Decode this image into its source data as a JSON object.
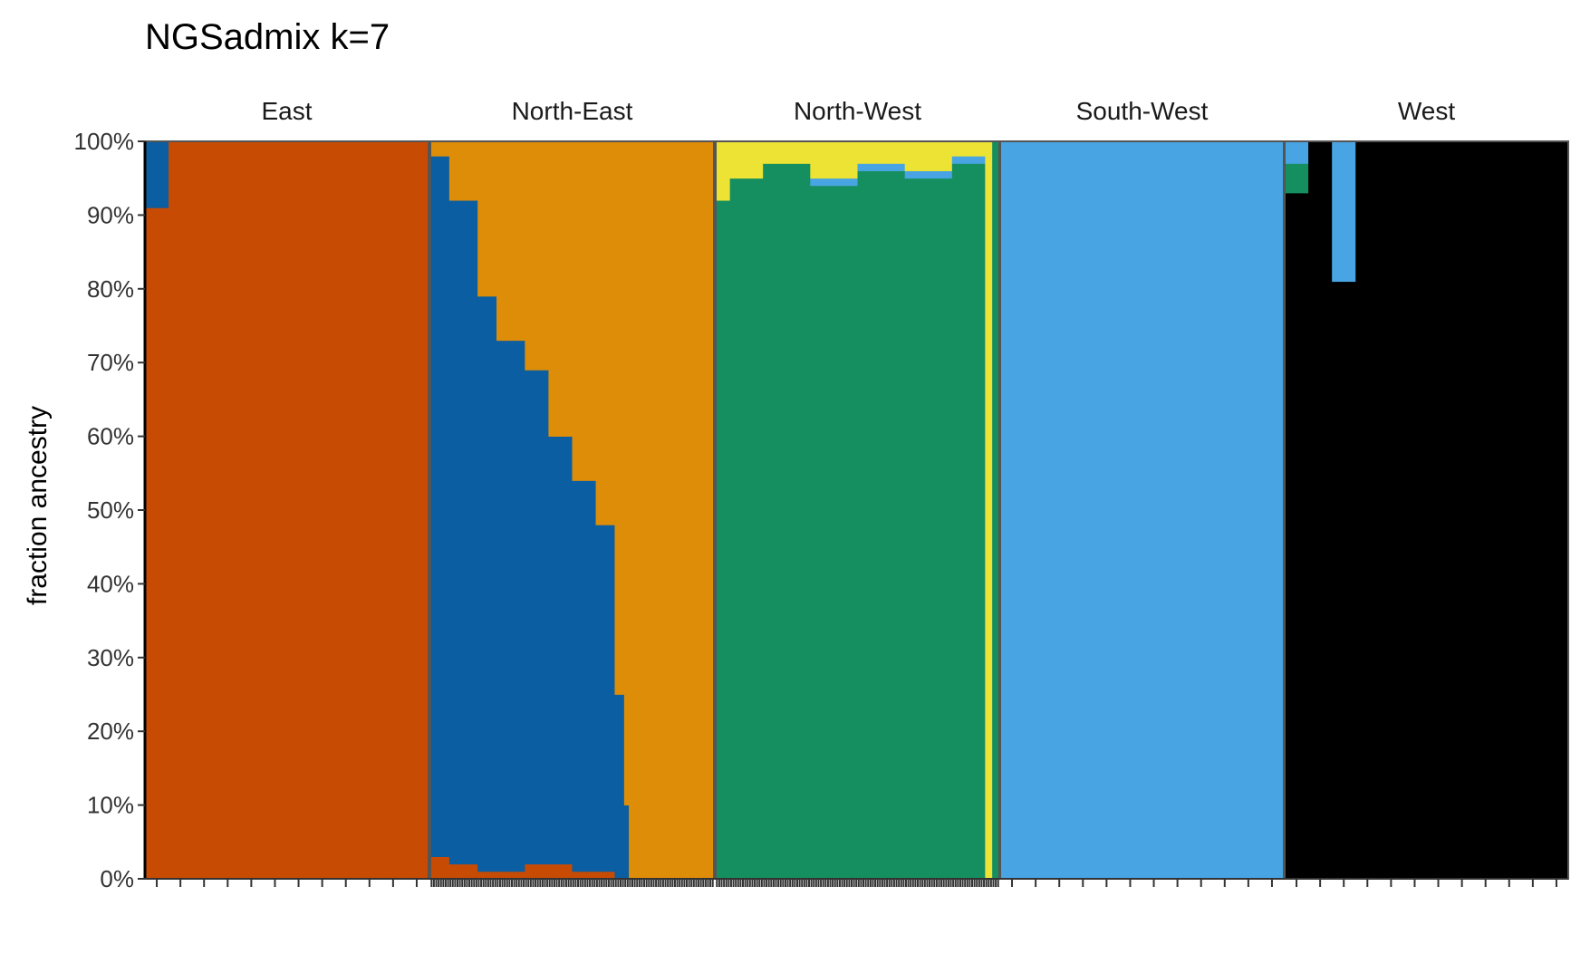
{
  "chart_data": {
    "type": "bar",
    "subtype": "stacked-100-percent-faceted",
    "title": "NGSadmix k=7",
    "ylabel": "fraction ancestry",
    "xlabel": "",
    "ylim": [
      0,
      100
    ],
    "y_ticks": [
      "0%",
      "10%",
      "20%",
      "30%",
      "40%",
      "50%",
      "60%",
      "70%",
      "80%",
      "90%",
      "100%"
    ],
    "grid": false,
    "legend": "none",
    "component_colors": {
      "orange_red": "#c84b04",
      "dark_blue": "#0a5ea1",
      "orange": "#de8d09",
      "green": "#168f60",
      "yellow": "#ece334",
      "light_blue": "#48a4e2",
      "black": "#000000"
    },
    "facets": [
      {
        "name": "East",
        "samples": 12,
        "stack_order": [
          "orange_red",
          "dark_blue"
        ],
        "segments": [
          {
            "samples": [
              0,
              1
            ],
            "values": {
              "orange_red": 91,
              "dark_blue": 9
            }
          },
          {
            "samples": [
              1,
              12
            ],
            "values": {
              "orange_red": 100,
              "dark_blue": 0
            }
          }
        ]
      },
      {
        "name": "North-East",
        "samples": 120,
        "stack_order": [
          "orange_red",
          "dark_blue",
          "orange"
        ],
        "segments": [
          {
            "samples": [
              0,
              8
            ],
            "values": {
              "orange_red": 3,
              "dark_blue": 95,
              "orange": 2
            }
          },
          {
            "samples": [
              8,
              20
            ],
            "values": {
              "orange_red": 2,
              "dark_blue": 90,
              "orange": 8
            }
          },
          {
            "samples": [
              20,
              28
            ],
            "values": {
              "orange_red": 1,
              "dark_blue": 78,
              "orange": 21
            }
          },
          {
            "samples": [
              28,
              40
            ],
            "values": {
              "orange_red": 1,
              "dark_blue": 72,
              "orange": 27
            }
          },
          {
            "samples": [
              40,
              50
            ],
            "values": {
              "orange_red": 2,
              "dark_blue": 67,
              "orange": 31
            }
          },
          {
            "samples": [
              50,
              60
            ],
            "values": {
              "orange_red": 2,
              "dark_blue": 58,
              "orange": 40
            }
          },
          {
            "samples": [
              60,
              70
            ],
            "values": {
              "orange_red": 1,
              "dark_blue": 53,
              "orange": 46
            }
          },
          {
            "samples": [
              70,
              78
            ],
            "values": {
              "orange_red": 1,
              "dark_blue": 47,
              "orange": 52
            }
          },
          {
            "samples": [
              78,
              82
            ],
            "values": {
              "orange_red": 0,
              "dark_blue": 25,
              "orange": 75
            }
          },
          {
            "samples": [
              82,
              84
            ],
            "values": {
              "orange_red": 0,
              "dark_blue": 10,
              "orange": 90
            }
          },
          {
            "samples": [
              84,
              120
            ],
            "values": {
              "orange_red": 0,
              "dark_blue": 0,
              "orange": 100
            }
          }
        ]
      },
      {
        "name": "North-West",
        "samples": 120,
        "stack_order": [
          "black",
          "green",
          "light_blue",
          "yellow"
        ],
        "segments": [
          {
            "samples": [
              0,
              6
            ],
            "values": {
              "black": 0,
              "green": 92,
              "light_blue": 0,
              "yellow": 8
            }
          },
          {
            "samples": [
              6,
              20
            ],
            "values": {
              "black": 0,
              "green": 95,
              "light_blue": 0,
              "yellow": 5
            }
          },
          {
            "samples": [
              20,
              40
            ],
            "values": {
              "black": 0,
              "green": 97,
              "light_blue": 0,
              "yellow": 3
            }
          },
          {
            "samples": [
              40,
              60
            ],
            "values": {
              "black": 0,
              "green": 94,
              "light_blue": 1,
              "yellow": 5
            }
          },
          {
            "samples": [
              60,
              80
            ],
            "values": {
              "black": 0,
              "green": 96,
              "light_blue": 1,
              "yellow": 3
            }
          },
          {
            "samples": [
              80,
              100
            ],
            "values": {
              "black": 0,
              "green": 95,
              "light_blue": 1,
              "yellow": 4
            }
          },
          {
            "samples": [
              100,
              114
            ],
            "values": {
              "black": 0,
              "green": 97,
              "light_blue": 1,
              "yellow": 2
            }
          },
          {
            "samples": [
              114,
              117
            ],
            "values": {
              "black": 0,
              "green": 0,
              "light_blue": 0,
              "yellow": 100
            }
          },
          {
            "samples": [
              117,
              120
            ],
            "values": {
              "black": 0,
              "green": 100,
              "light_blue": 0,
              "yellow": 0
            }
          }
        ]
      },
      {
        "name": "South-West",
        "samples": 12,
        "stack_order": [
          "light_blue"
        ],
        "segments": [
          {
            "samples": [
              0,
              12
            ],
            "values": {
              "light_blue": 100
            }
          }
        ]
      },
      {
        "name": "West",
        "samples": 12,
        "stack_order": [
          "black",
          "green",
          "light_blue"
        ],
        "segments": [
          {
            "samples": [
              0,
              1
            ],
            "values": {
              "black": 93,
              "green": 4,
              "light_blue": 3
            }
          },
          {
            "samples": [
              1,
              2
            ],
            "values": {
              "black": 100,
              "green": 0,
              "light_blue": 0
            }
          },
          {
            "samples": [
              2,
              3
            ],
            "values": {
              "black": 81,
              "green": 0,
              "light_blue": 19
            }
          },
          {
            "samples": [
              3,
              12
            ],
            "values": {
              "black": 100,
              "green": 0,
              "light_blue": 0
            }
          }
        ]
      }
    ]
  }
}
